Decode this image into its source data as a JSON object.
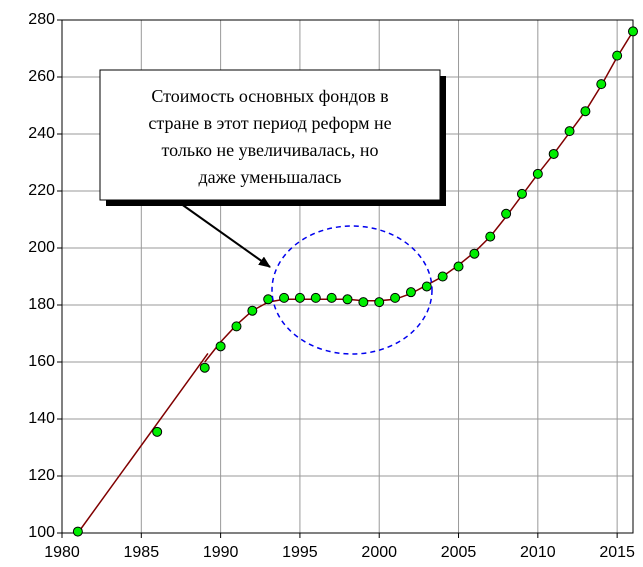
{
  "chart_data": {
    "type": "line",
    "x": [
      1981,
      1986,
      1989,
      1990,
      1991,
      1992,
      1993,
      1994,
      1995,
      1996,
      1997,
      1998,
      1999,
      2000,
      2001,
      2002,
      2003,
      2004,
      2005,
      2006,
      2007,
      2008,
      2009,
      2010,
      2011,
      2012,
      2013,
      2014,
      2015,
      2016
    ],
    "series": [
      {
        "color": "#00ee00",
        "values": [
          100.5,
          135.5,
          158,
          165.5,
          172.5,
          178,
          182,
          182.5,
          182.5,
          182.5,
          182.5,
          182,
          181,
          181,
          182.5,
          184.5,
          186.5,
          190,
          193.5,
          198,
          204,
          212,
          219,
          226,
          233,
          241,
          248,
          257.5,
          267.5,
          276
        ]
      }
    ],
    "trend": {
      "color": "#800000",
      "x": [
        1981,
        1989.2,
        1989.25,
        1989,
        1990,
        1991,
        1992,
        1993,
        1994,
        1995,
        1996,
        1997,
        1998,
        1999,
        2000,
        2001,
        2002,
        2003,
        2004,
        2005,
        2006,
        2007,
        2008,
        2009,
        2010,
        2011,
        2012,
        2013,
        2014,
        2015,
        2016
      ],
      "values": [
        100,
        163,
        null,
        160,
        167,
        173,
        178,
        181,
        182,
        182,
        182,
        182,
        182,
        181.5,
        181.5,
        182,
        184,
        187,
        190,
        194,
        198.5,
        204,
        211,
        218.5,
        226,
        233,
        240.5,
        248,
        257,
        267,
        276
      ]
    },
    "annotation": [
      "Стоимость основных фондов в",
      "стране в этот период реформ не",
      "только не увеличивалась, но",
      "даже уменьшалась"
    ],
    "xlim": [
      1980,
      2016
    ],
    "xticks": [
      1980,
      1985,
      1990,
      1995,
      2000,
      2005,
      2010,
      2015
    ],
    "ylim": [
      100,
      280
    ],
    "yticks": [
      100,
      120,
      140,
      160,
      180,
      200,
      220,
      240,
      260,
      280
    ],
    "grid": true
  }
}
